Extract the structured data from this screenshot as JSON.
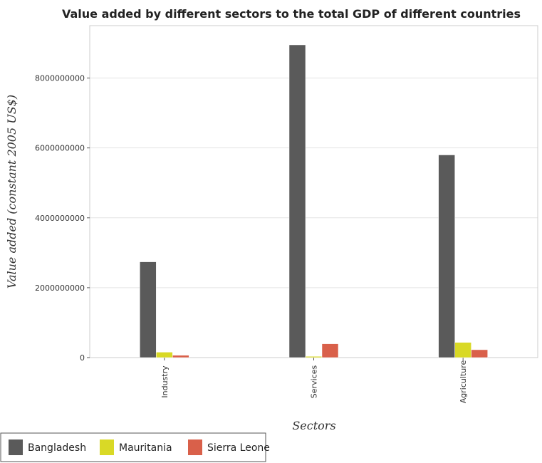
{
  "chart_data": {
    "type": "bar",
    "title": "Value added by different sectors to the total GDP of different countries",
    "xlabel": "Sectors",
    "ylabel": "Value added (constant 2005 US$)",
    "categories": [
      "Industry",
      "Services",
      "Agriculture"
    ],
    "ylim": [
      0,
      9500000000
    ],
    "yticks": [
      0,
      2000000000,
      4000000000,
      6000000000,
      8000000000
    ],
    "ytick_labels": [
      "0",
      "2000000000",
      "4000000000",
      "6000000000",
      "8000000000"
    ],
    "grid": true,
    "legend_position": "bottom-left",
    "series": [
      {
        "name": "Bangladesh",
        "color": "#5a5a5a",
        "values": [
          2740000000,
          8950000000,
          5800000000
        ]
      },
      {
        "name": "Mauritania",
        "color": "#d9d926",
        "values": [
          155000000,
          35000000,
          435000000
        ]
      },
      {
        "name": "Sierra Leone",
        "color": "#d9604a",
        "values": [
          65000000,
          395000000,
          225000000
        ]
      }
    ]
  }
}
